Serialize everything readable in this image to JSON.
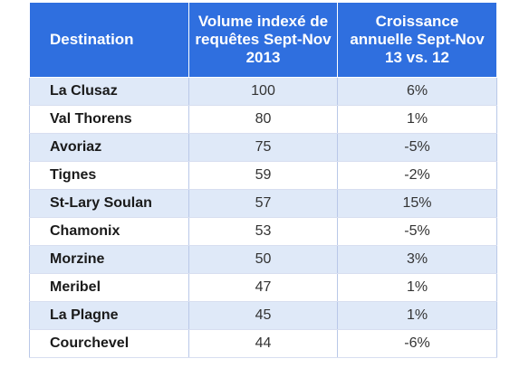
{
  "table": {
    "headers": {
      "destination": "Destination",
      "volume": "Volume indexé de requêtes Sept-Nov 2013",
      "growth": "Croissance annuelle Sept-Nov 13 vs. 12"
    },
    "rows": [
      {
        "destination": "La Clusaz",
        "volume": "100",
        "growth": "6%"
      },
      {
        "destination": "Val Thorens",
        "volume": "80",
        "growth": "1%"
      },
      {
        "destination": "Avoriaz",
        "volume": "75",
        "growth": "-5%"
      },
      {
        "destination": "Tignes",
        "volume": "59",
        "growth": "-2%"
      },
      {
        "destination": "St-Lary Soulan",
        "volume": "57",
        "growth": "15%"
      },
      {
        "destination": "Chamonix",
        "volume": "53",
        "growth": "-5%"
      },
      {
        "destination": "Morzine",
        "volume": "50",
        "growth": "3%"
      },
      {
        "destination": "Meribel",
        "volume": "47",
        "growth": "1%"
      },
      {
        "destination": "La Plagne",
        "volume": "45",
        "growth": "1%"
      },
      {
        "destination": "Courchevel",
        "volume": "44",
        "growth": "-6%"
      }
    ]
  },
  "colors": {
    "header_background": "#2f6fdf",
    "header_text": "#ffffff",
    "band_row": "#dfe9f8",
    "plain_row": "#ffffff"
  }
}
